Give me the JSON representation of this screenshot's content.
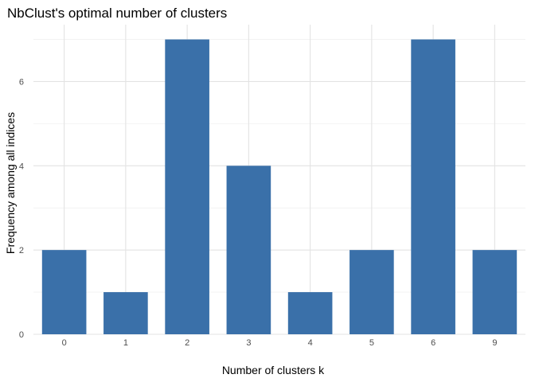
{
  "chart_data": {
    "type": "bar",
    "title": "NbClust's optimal number of clusters",
    "xlabel": "Number of clusters k",
    "ylabel": "Frequency among all indices",
    "categories": [
      "0",
      "1",
      "2",
      "3",
      "4",
      "5",
      "6",
      "9"
    ],
    "values": [
      2,
      1,
      7,
      4,
      1,
      2,
      7,
      2
    ],
    "ylim": [
      0,
      7.35
    ],
    "yticks": [
      0,
      2,
      4,
      6
    ],
    "bar_color": "#3A70A9",
    "grid": true,
    "legend": "none"
  }
}
